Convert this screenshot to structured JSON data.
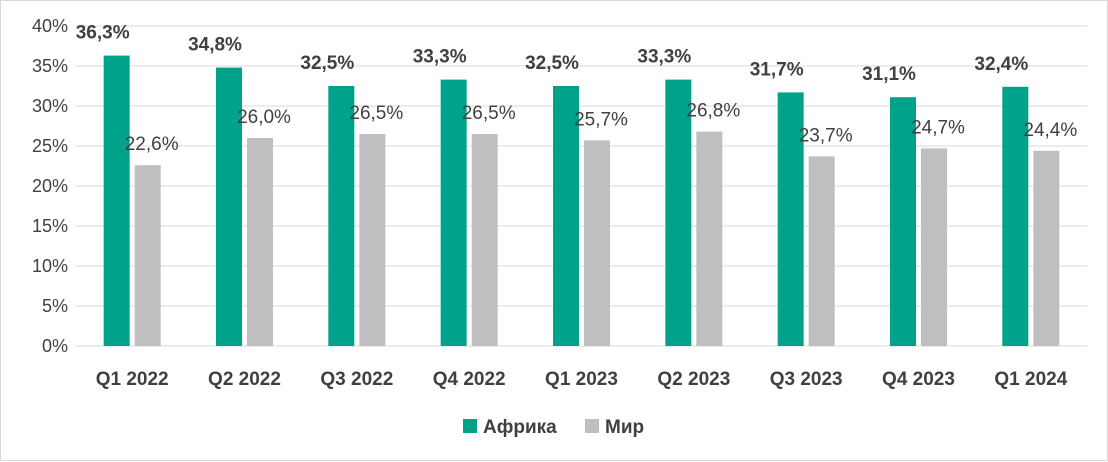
{
  "chart_data": {
    "type": "bar",
    "categories": [
      "Q1 2022",
      "Q2 2022",
      "Q3 2022",
      "Q4 2022",
      "Q1 2023",
      "Q2 2023",
      "Q3 2023",
      "Q4 2023",
      "Q1 2024"
    ],
    "series": [
      {
        "name": "Африка",
        "color": "#00A389",
        "values": [
          36.3,
          34.8,
          32.5,
          33.3,
          32.5,
          33.3,
          31.7,
          31.1,
          32.4
        ],
        "labels": [
          "36,3%",
          "34,8%",
          "32,5%",
          "33,3%",
          "32,5%",
          "33,3%",
          "31,7%",
          "31,1%",
          "32,4%"
        ]
      },
      {
        "name": "Мир",
        "color": "#BFBFBF",
        "values": [
          22.6,
          26.0,
          26.5,
          26.5,
          25.7,
          26.8,
          23.7,
          24.7,
          24.4
        ],
        "labels": [
          "22,6%",
          "26,0%",
          "26,5%",
          "26,5%",
          "25,7%",
          "26,8%",
          "23,7%",
          "24,7%",
          "24,4%"
        ]
      }
    ],
    "y_ticks": [
      "0%",
      "5%",
      "10%",
      "15%",
      "20%",
      "25%",
      "30%",
      "35%",
      "40%"
    ],
    "ylim": [
      0,
      40
    ],
    "grid": true,
    "gridline_color": "#d9d9d9",
    "legend_position": "bottom"
  }
}
